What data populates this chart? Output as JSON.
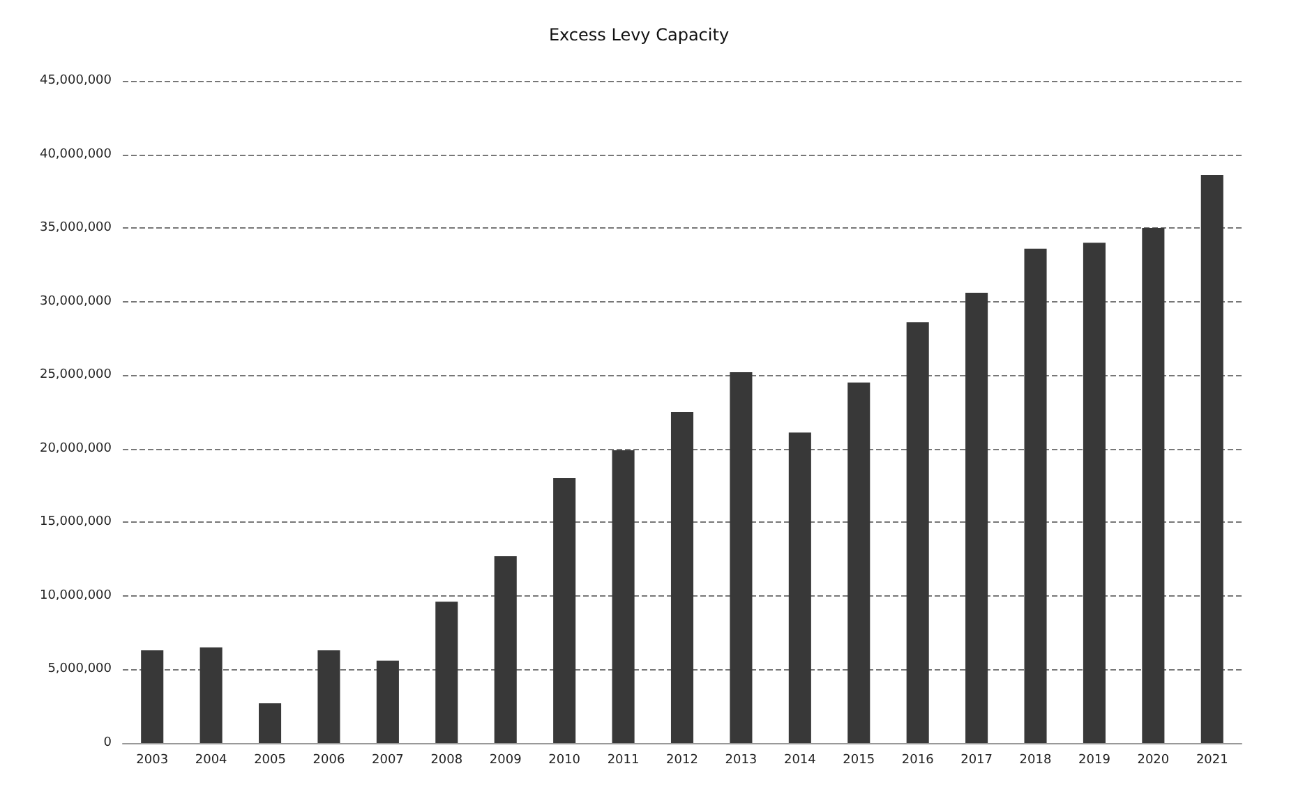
{
  "chart_data": {
    "type": "bar",
    "title": "Excess Levy Capacity",
    "categories": [
      "2003",
      "2004",
      "2005",
      "2006",
      "2007",
      "2008",
      "2009",
      "2010",
      "2011",
      "2012",
      "2013",
      "2014",
      "2015",
      "2016",
      "2017",
      "2018",
      "2019",
      "2020",
      "2021"
    ],
    "values": [
      6300000,
      6500000,
      2700000,
      6300000,
      5600000,
      9600000,
      12700000,
      18000000,
      19900000,
      22500000,
      25200000,
      21100000,
      24500000,
      28600000,
      30600000,
      33600000,
      34000000,
      35000000,
      38600000
    ],
    "color": "#383838",
    "ylim": [
      0,
      45000000
    ],
    "yticks": [
      0,
      {
        "value": 5000000,
        "label": "5,000,000"
      },
      {
        "value": 10000000,
        "label": "10,000,000"
      },
      {
        "value": 15000000,
        "label": "15,000,000"
      },
      {
        "value": 20000000,
        "label": "20,000,000"
      },
      {
        "value": 25000000,
        "label": "25,000,000"
      },
      {
        "value": 30000000,
        "label": "30,000,000"
      },
      {
        "value": 35000000,
        "label": "35,000,000"
      },
      {
        "value": 40000000,
        "label": "40,000,000"
      },
      {
        "value": 45000000,
        "label": "45,000,000"
      }
    ],
    "grid": "y"
  }
}
